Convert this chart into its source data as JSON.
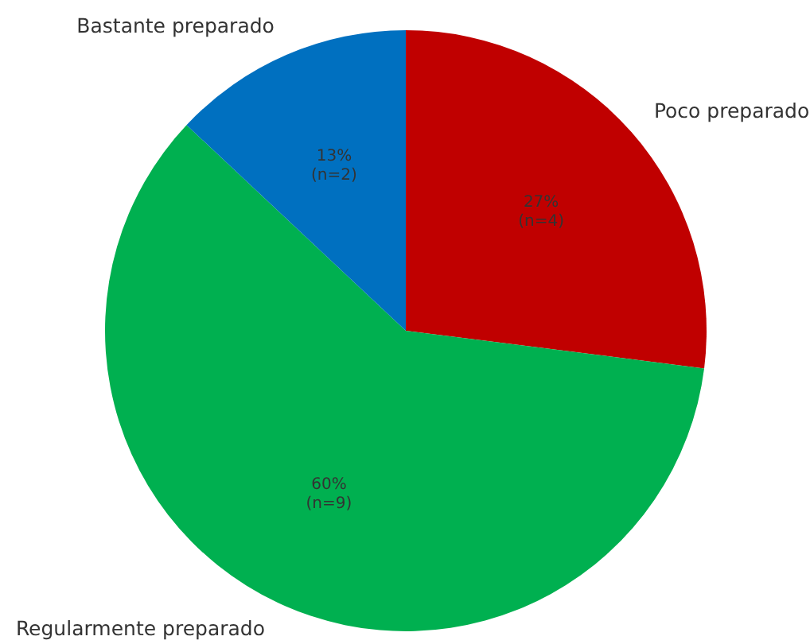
{
  "chart_data": {
    "type": "pie",
    "categories": [
      "Poco preparado",
      "Regularmente preparado",
      "Bastante preparado"
    ],
    "values": [
      27,
      60,
      13
    ],
    "value_labels": [
      "27%\n(n=4)",
      "60%\n(n=9)",
      "13%\n(n=2)"
    ],
    "colors": [
      "#c00000",
      "#00b050",
      "#0070c0"
    ]
  }
}
